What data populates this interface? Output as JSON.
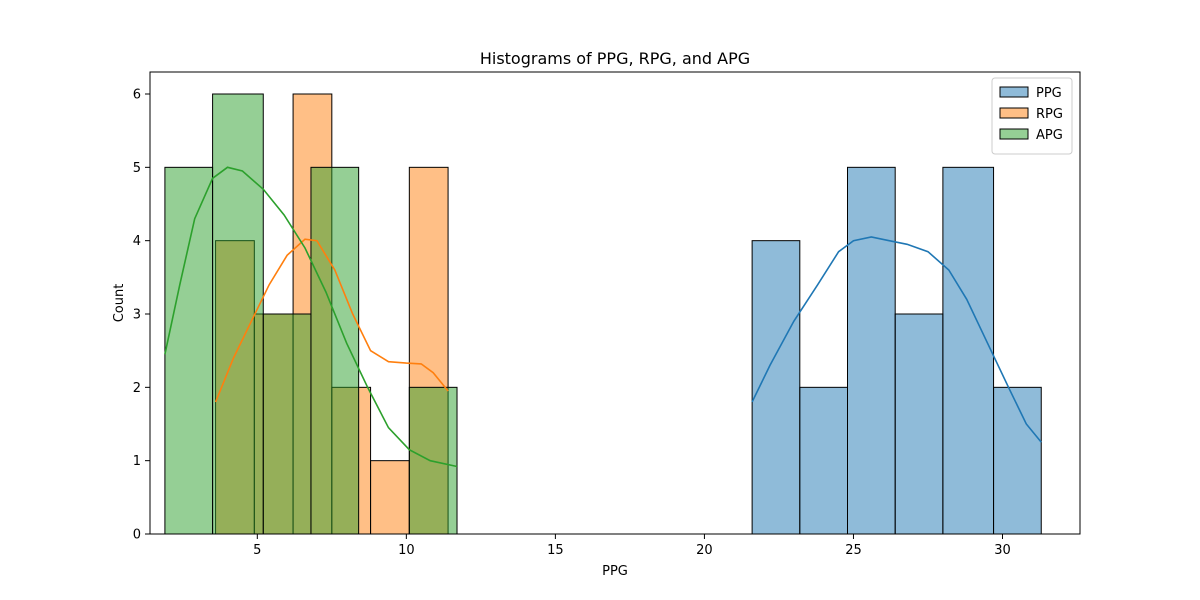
{
  "chart_data": {
    "type": "histogram",
    "title": "Histograms of PPG, RPG, and APG",
    "xlabel": "PPG",
    "ylabel": "Count",
    "xlim": [
      1.4,
      32.6
    ],
    "ylim": [
      0,
      6.3
    ],
    "xticks": [
      5,
      10,
      15,
      20,
      25,
      30
    ],
    "yticks": [
      0,
      1,
      2,
      3,
      4,
      5,
      6
    ],
    "legend": {
      "position": "top-right",
      "entries": [
        "PPG",
        "RPG",
        "APG"
      ]
    },
    "series": [
      {
        "name": "PPG",
        "color": "#1f77b4",
        "bins": [
          {
            "x0": 21.6,
            "x1": 23.2,
            "count": 4
          },
          {
            "x0": 23.2,
            "x1": 24.8,
            "count": 2
          },
          {
            "x0": 24.8,
            "x1": 26.4,
            "count": 5
          },
          {
            "x0": 26.4,
            "x1": 28.0,
            "count": 3
          },
          {
            "x0": 28.0,
            "x1": 29.7,
            "count": 5
          },
          {
            "x0": 29.7,
            "x1": 31.3,
            "count": 2
          }
        ],
        "kde": [
          [
            21.6,
            1.8
          ],
          [
            22.2,
            2.3
          ],
          [
            23.0,
            2.9
          ],
          [
            23.8,
            3.4
          ],
          [
            24.5,
            3.85
          ],
          [
            25.0,
            4.0
          ],
          [
            25.6,
            4.05
          ],
          [
            26.2,
            4.0
          ],
          [
            26.8,
            3.95
          ],
          [
            27.5,
            3.85
          ],
          [
            28.2,
            3.6
          ],
          [
            28.8,
            3.2
          ],
          [
            29.5,
            2.6
          ],
          [
            30.2,
            2.0
          ],
          [
            30.8,
            1.5
          ],
          [
            31.3,
            1.25
          ]
        ]
      },
      {
        "name": "RPG",
        "color": "#ff7f0e",
        "bins": [
          {
            "x0": 3.6,
            "x1": 4.9,
            "count": 4
          },
          {
            "x0": 4.9,
            "x1": 6.2,
            "count": 3
          },
          {
            "x0": 6.2,
            "x1": 7.5,
            "count": 6
          },
          {
            "x0": 7.5,
            "x1": 8.8,
            "count": 2
          },
          {
            "x0": 8.8,
            "x1": 10.1,
            "count": 1
          },
          {
            "x0": 10.1,
            "x1": 11.4,
            "count": 5
          }
        ],
        "kde": [
          [
            3.6,
            1.8
          ],
          [
            4.2,
            2.4
          ],
          [
            4.8,
            2.9
          ],
          [
            5.4,
            3.4
          ],
          [
            6.0,
            3.8
          ],
          [
            6.6,
            4.02
          ],
          [
            7.0,
            4.0
          ],
          [
            7.6,
            3.6
          ],
          [
            8.2,
            3.0
          ],
          [
            8.8,
            2.5
          ],
          [
            9.4,
            2.35
          ],
          [
            10.0,
            2.33
          ],
          [
            10.5,
            2.32
          ],
          [
            10.9,
            2.2
          ],
          [
            11.4,
            1.95
          ]
        ]
      },
      {
        "name": "APG",
        "color": "#2ca02c",
        "bins": [
          {
            "x0": 1.9,
            "x1": 3.5,
            "count": 5
          },
          {
            "x0": 3.5,
            "x1": 5.2,
            "count": 6
          },
          {
            "x0": 5.2,
            "x1": 6.8,
            "count": 3
          },
          {
            "x0": 6.8,
            "x1": 8.4,
            "count": 5
          },
          {
            "x0": 8.4,
            "x1": 10.1,
            "count": 0
          },
          {
            "x0": 10.1,
            "x1": 11.7,
            "count": 2
          }
        ],
        "kde": [
          [
            1.9,
            2.45
          ],
          [
            2.4,
            3.4
          ],
          [
            2.9,
            4.3
          ],
          [
            3.5,
            4.85
          ],
          [
            4.0,
            5.0
          ],
          [
            4.5,
            4.95
          ],
          [
            5.2,
            4.7
          ],
          [
            5.9,
            4.35
          ],
          [
            6.6,
            3.9
          ],
          [
            7.3,
            3.3
          ],
          [
            8.0,
            2.6
          ],
          [
            8.7,
            2.0
          ],
          [
            9.4,
            1.45
          ],
          [
            10.1,
            1.15
          ],
          [
            10.8,
            1.0
          ],
          [
            11.7,
            0.92
          ]
        ]
      }
    ]
  }
}
